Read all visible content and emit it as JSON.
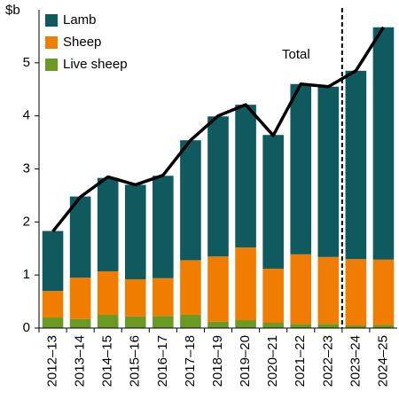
{
  "chart_data": {
    "type": "stacked-bar-line",
    "y_unit": "$b",
    "annotation": "Total",
    "categories": [
      "2012–13",
      "2013–14",
      "2014–15",
      "2015–16",
      "2016–17",
      "2017–18",
      "2018–19",
      "2019–20",
      "2020–21",
      "2021–22",
      "2022–23",
      "2023–24",
      "2024–25"
    ],
    "series": [
      {
        "name": "Live sheep",
        "color": "#6a9a23",
        "values": [
          0.2,
          0.17,
          0.25,
          0.22,
          0.23,
          0.25,
          0.12,
          0.15,
          0.1,
          0.08,
          0.08,
          0.05,
          0.06
        ]
      },
      {
        "name": "Sheep",
        "color": "#f07d00",
        "values": [
          0.5,
          0.78,
          0.82,
          0.7,
          0.71,
          1.03,
          1.23,
          1.37,
          1.02,
          1.31,
          1.26,
          1.25,
          1.23
        ]
      },
      {
        "name": "Lamb",
        "color": "#0e5a5f",
        "values": [
          1.13,
          1.53,
          1.76,
          1.78,
          1.93,
          2.26,
          2.64,
          2.69,
          2.52,
          3.21,
          3.21,
          3.55,
          4.38
        ]
      }
    ],
    "line": {
      "name": "Total",
      "color": "#000000",
      "values": [
        1.82,
        2.47,
        2.85,
        2.7,
        2.88,
        3.54,
        4.0,
        4.21,
        3.63,
        4.6,
        4.55,
        4.85,
        5.67
      ]
    },
    "ylim": [
      0,
      6
    ],
    "yticks": [
      0,
      1,
      2,
      3,
      4,
      5
    ],
    "grid": false
  }
}
